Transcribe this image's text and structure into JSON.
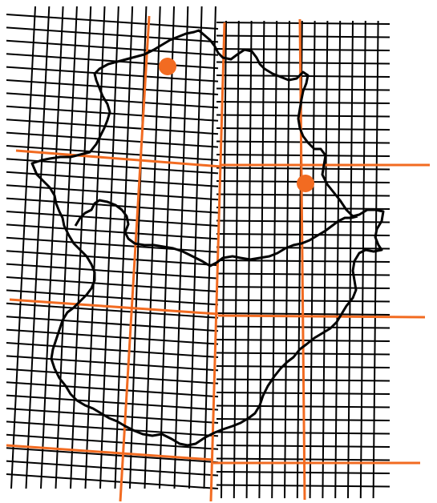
{
  "map": {
    "colors": {
      "background": "#ffffff",
      "grid_line": "#000000",
      "major_grid_line": "#f26b21",
      "outline": "#000000",
      "marker": "#f26b21"
    },
    "markers": [
      {
        "name": "marker-north",
        "icon": "circle-marker"
      },
      {
        "name": "marker-east",
        "icon": "circle-marker"
      }
    ]
  }
}
